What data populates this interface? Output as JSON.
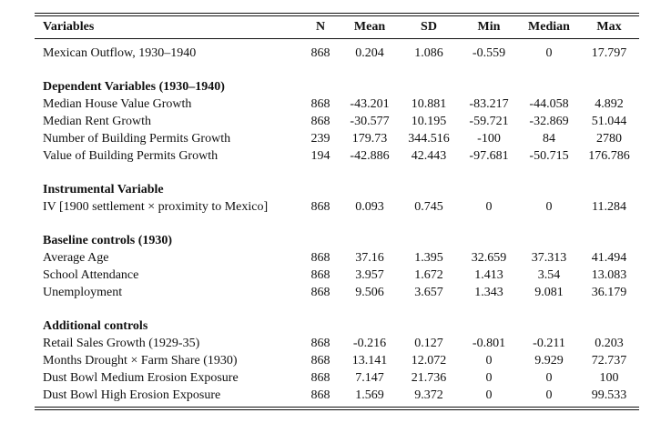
{
  "table": {
    "headers": [
      "Variables",
      "N",
      "Mean",
      "SD",
      "Min",
      "Median",
      "Max"
    ],
    "first_row": {
      "label": "Mexican Outflow, 1930–1940",
      "values": [
        "868",
        "0.204",
        "1.086",
        "-0.559",
        "0",
        "17.797"
      ]
    },
    "sections": [
      {
        "title": "Dependent Variables (1930–1940)",
        "rows": [
          {
            "label": "Median House Value Growth",
            "values": [
              "868",
              "-43.201",
              "10.881",
              "-83.217",
              "-44.058",
              "4.892"
            ]
          },
          {
            "label": "Median Rent Growth",
            "values": [
              "868",
              "-30.577",
              "10.195",
              "-59.721",
              "-32.869",
              "51.044"
            ]
          },
          {
            "label": "Number of Building Permits Growth",
            "values": [
              "239",
              "179.73",
              "344.516",
              "-100",
              "84",
              "2780"
            ]
          },
          {
            "label": "Value of Building Permits Growth",
            "values": [
              "194",
              "-42.886",
              "42.443",
              "-97.681",
              "-50.715",
              "176.786"
            ]
          }
        ]
      },
      {
        "title": "Instrumental Variable",
        "rows": [
          {
            "label": "IV [1900 settlement × proximity to Mexico]",
            "values": [
              "868",
              "0.093",
              "0.745",
              "0",
              "0",
              "11.284"
            ]
          }
        ]
      },
      {
        "title": "Baseline controls (1930)",
        "rows": [
          {
            "label": "Average Age",
            "values": [
              "868",
              "37.16",
              "1.395",
              "32.659",
              "37.313",
              "41.494"
            ]
          },
          {
            "label": "School Attendance",
            "values": [
              "868",
              "3.957",
              "1.672",
              "1.413",
              "3.54",
              "13.083"
            ]
          },
          {
            "label": "Unemployment",
            "values": [
              "868",
              "9.506",
              "3.657",
              "1.343",
              "9.081",
              "36.179"
            ]
          }
        ]
      },
      {
        "title": "Additional controls",
        "rows": [
          {
            "label": "Retail Sales Growth (1929-35)",
            "values": [
              "868",
              "-0.216",
              "0.127",
              "-0.801",
              "-0.211",
              "0.203"
            ]
          },
          {
            "label": "Months Drought × Farm Share (1930)",
            "values": [
              "868",
              "13.141",
              "12.072",
              "0",
              "9.929",
              "72.737"
            ]
          },
          {
            "label": "Dust Bowl Medium Erosion Exposure",
            "values": [
              "868",
              "7.147",
              "21.736",
              "0",
              "0",
              "100"
            ]
          },
          {
            "label": "Dust Bowl High Erosion Exposure",
            "values": [
              "868",
              "1.569",
              "9.372",
              "0",
              "0",
              "99.533"
            ]
          }
        ]
      }
    ]
  }
}
